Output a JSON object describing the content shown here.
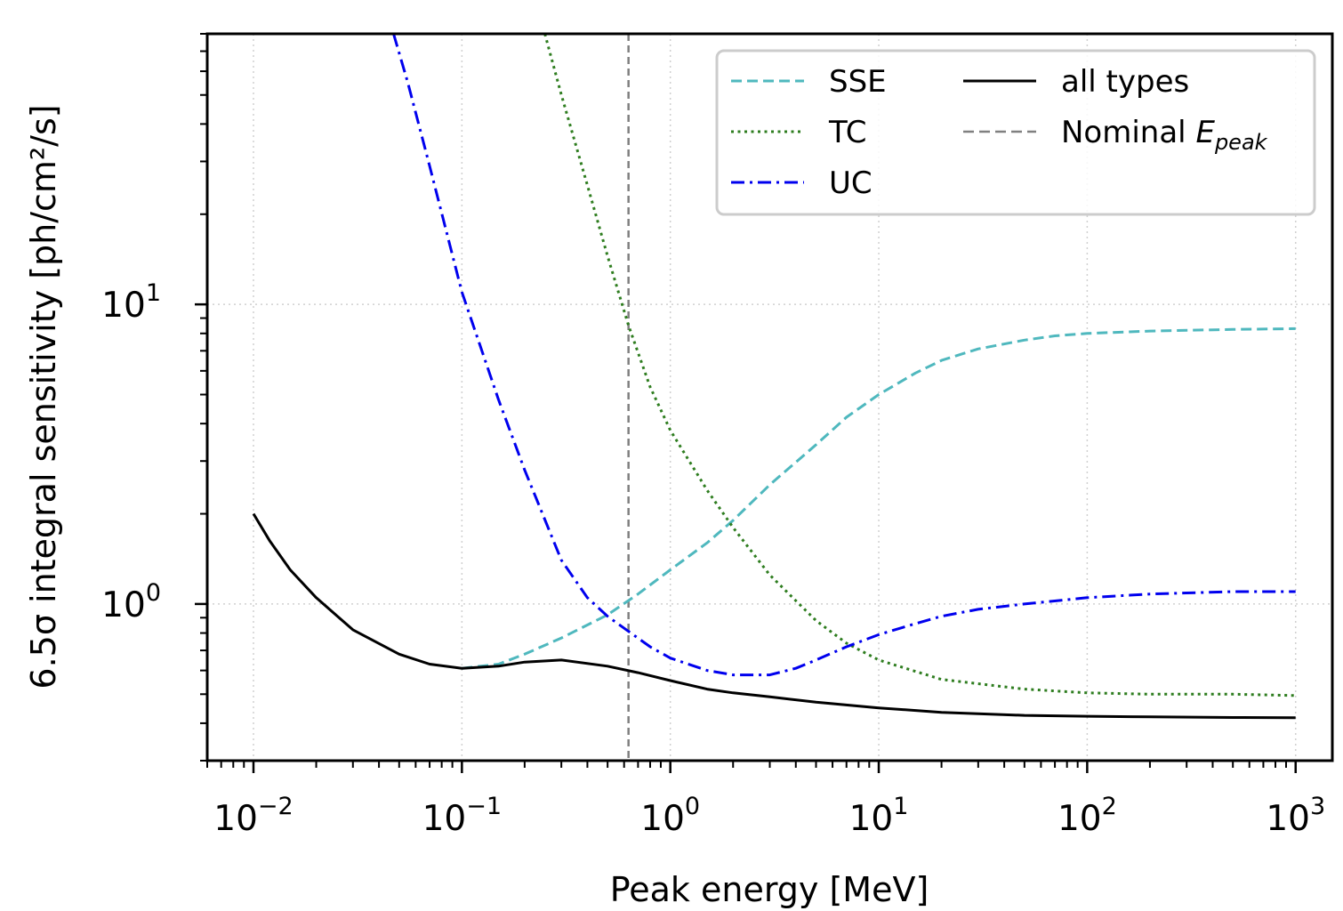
{
  "chart_data": {
    "type": "line",
    "title": "",
    "xlabel": "Peak energy [MeV]",
    "ylabel": "6.5σ integral sensitivity [ph/cm²/s]",
    "xscale": "log",
    "yscale": "log",
    "xlim": [
      0.006,
      1500
    ],
    "ylim": [
      0.3,
      80
    ],
    "x_ticks": [
      {
        "value": 0.01,
        "base": "10",
        "exp": "−2"
      },
      {
        "value": 0.1,
        "base": "10",
        "exp": "−1"
      },
      {
        "value": 1,
        "base": "10",
        "exp": "0"
      },
      {
        "value": 10,
        "base": "10",
        "exp": "1"
      },
      {
        "value": 100,
        "base": "10",
        "exp": "2"
      },
      {
        "value": 1000,
        "base": "10",
        "exp": "3"
      }
    ],
    "y_ticks": [
      {
        "value": 1,
        "base": "10",
        "exp": "0"
      },
      {
        "value": 10,
        "base": "10",
        "exp": "1"
      }
    ],
    "grid": true,
    "legend_position": "top-right",
    "nominal_epeak": 0.63,
    "legend": [
      {
        "label": "SSE",
        "color": "#4fb8be",
        "style": "dashed"
      },
      {
        "label": "TC",
        "color": "#2e7d1f",
        "style": "dotted"
      },
      {
        "label": "UC",
        "color": "#0000ee",
        "style": "dashdot"
      },
      {
        "label": "all types",
        "color": "#000000",
        "style": "solid"
      },
      {
        "label": "Nominal ",
        "sub": "peak",
        "italic": "E",
        "color": "#808080",
        "style": "dashed"
      }
    ],
    "series": [
      {
        "name": "SSE",
        "color": "#4fb8be",
        "style": "dashed",
        "x": [
          0.1,
          0.15,
          0.2,
          0.3,
          0.5,
          0.7,
          1,
          1.5,
          2,
          3,
          5,
          7,
          10,
          15,
          20,
          30,
          50,
          70,
          100,
          200,
          500,
          1000
        ],
        "y": [
          0.61,
          0.63,
          0.68,
          0.77,
          0.92,
          1.08,
          1.3,
          1.6,
          1.9,
          2.5,
          3.4,
          4.2,
          5.0,
          5.9,
          6.5,
          7.1,
          7.6,
          7.85,
          8.0,
          8.15,
          8.25,
          8.3
        ]
      },
      {
        "name": "TC",
        "color": "#2e7d1f",
        "style": "dotted",
        "x": [
          0.25,
          0.3,
          0.4,
          0.5,
          0.63,
          0.8,
          1,
          1.5,
          2,
          3,
          5,
          7,
          10,
          20,
          50,
          100,
          200,
          500,
          1000
        ],
        "y": [
          80,
          50,
          25,
          14.5,
          8.5,
          5.3,
          3.8,
          2.4,
          1.8,
          1.25,
          0.88,
          0.74,
          0.65,
          0.56,
          0.52,
          0.505,
          0.5,
          0.5,
          0.495
        ]
      },
      {
        "name": "UC",
        "color": "#0000ee",
        "style": "dashdot",
        "x": [
          0.047,
          0.055,
          0.07,
          0.1,
          0.15,
          0.2,
          0.3,
          0.4,
          0.5,
          0.63,
          0.8,
          1,
          1.5,
          2,
          3,
          4,
          5,
          7,
          10,
          15,
          20,
          30,
          50,
          100,
          200,
          500,
          1000
        ],
        "y": [
          80,
          55,
          29,
          11,
          4.8,
          2.8,
          1.4,
          1.05,
          0.91,
          0.81,
          0.72,
          0.66,
          0.6,
          0.58,
          0.58,
          0.61,
          0.65,
          0.72,
          0.79,
          0.86,
          0.91,
          0.96,
          1.0,
          1.05,
          1.08,
          1.1,
          1.1
        ]
      },
      {
        "name": "all types",
        "color": "#000000",
        "style": "solid",
        "x": [
          0.01,
          0.012,
          0.015,
          0.02,
          0.03,
          0.05,
          0.07,
          0.1,
          0.15,
          0.2,
          0.3,
          0.5,
          0.7,
          1,
          1.5,
          2,
          3,
          5,
          10,
          20,
          50,
          100,
          200,
          500,
          1000
        ],
        "y": [
          2.0,
          1.62,
          1.3,
          1.05,
          0.82,
          0.68,
          0.63,
          0.61,
          0.62,
          0.64,
          0.65,
          0.62,
          0.59,
          0.555,
          0.52,
          0.505,
          0.49,
          0.47,
          0.45,
          0.435,
          0.425,
          0.422,
          0.42,
          0.418,
          0.417
        ]
      }
    ]
  }
}
